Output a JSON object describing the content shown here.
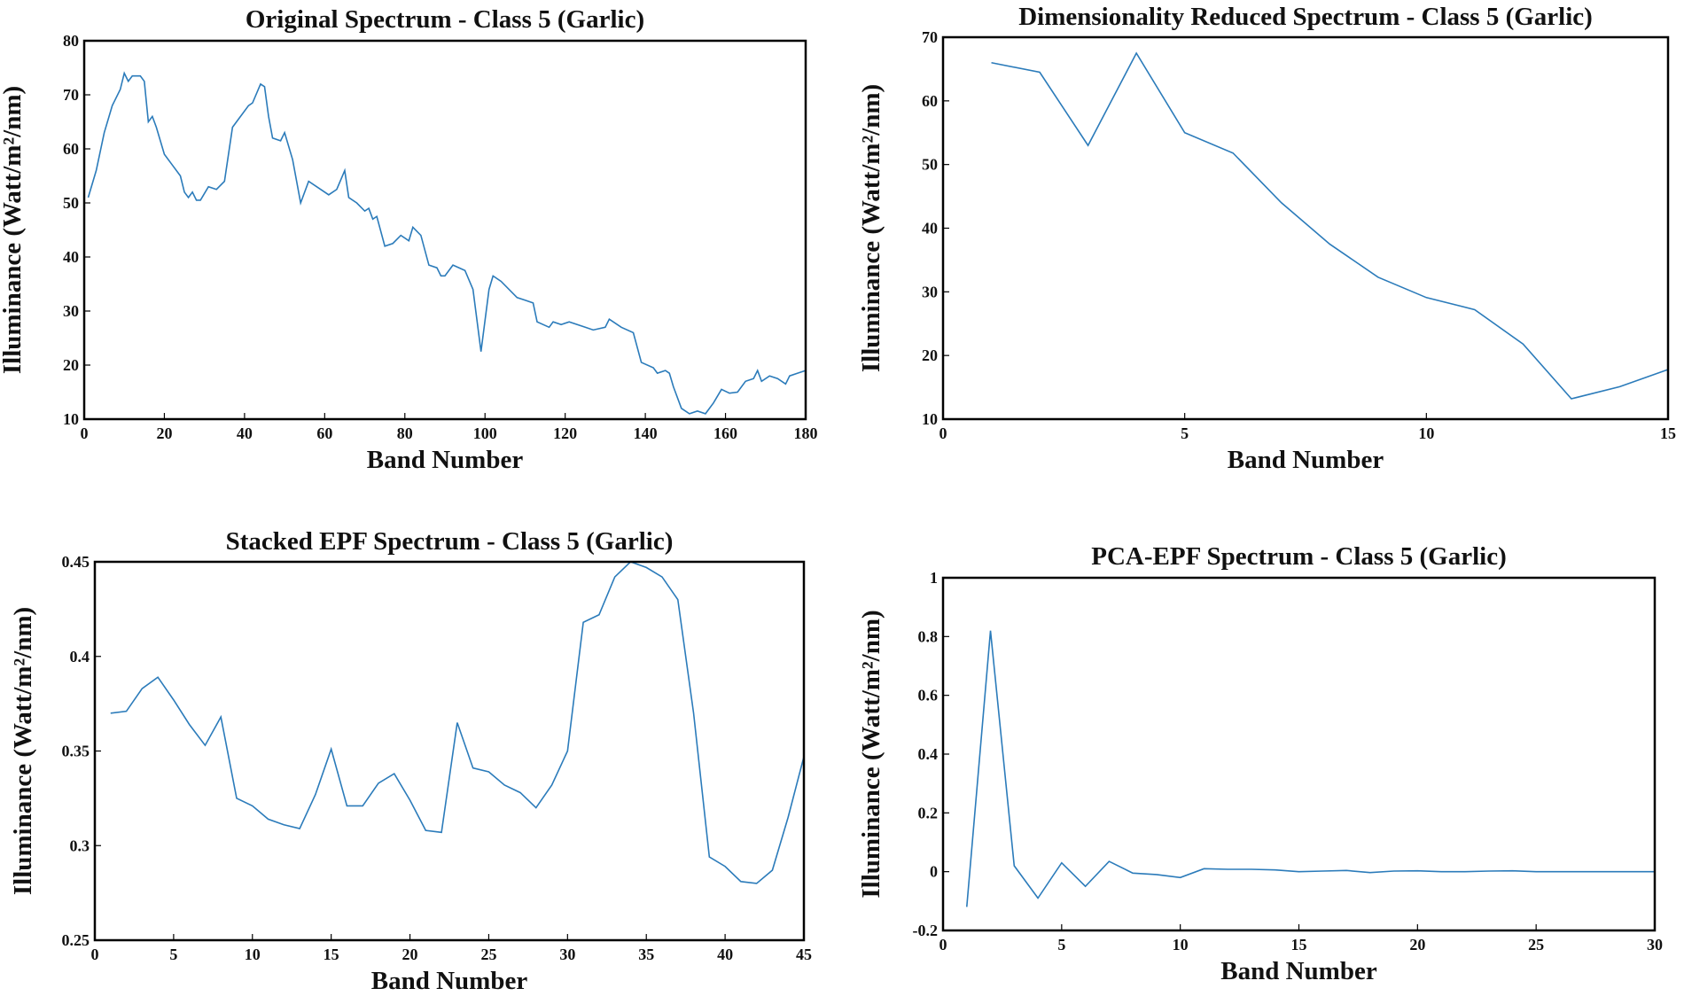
{
  "chart_data": [
    {
      "type": "line",
      "title": "Original Spectrum - Class 5 (Garlic)",
      "xlabel": "Band Number",
      "ylabel": "Illuminance (Watt/m²/nm)",
      "color": "#2b7bba",
      "x": [
        1,
        3,
        5,
        7,
        9,
        10,
        11,
        12,
        14,
        15,
        16,
        17,
        18,
        20,
        22,
        24,
        25,
        26,
        27,
        28,
        29,
        31,
        33,
        35,
        37,
        39,
        41,
        42,
        44,
        45,
        46,
        47,
        49,
        50,
        52,
        54,
        56,
        58,
        61,
        63,
        65,
        66,
        68,
        70,
        71,
        72,
        73,
        75,
        77,
        79,
        81,
        82,
        84,
        86,
        88,
        89,
        90,
        92,
        95,
        97,
        99,
        101,
        102,
        104,
        108,
        110,
        112,
        113,
        116,
        117,
        119,
        121,
        125,
        127,
        130,
        131,
        134,
        137,
        139,
        142,
        143,
        145,
        146,
        147,
        149,
        151,
        153,
        155,
        157,
        159,
        161,
        163,
        165,
        167,
        168,
        169,
        171,
        173,
        175,
        176,
        178,
        180
      ],
      "values": [
        51,
        56,
        63,
        68,
        71,
        74,
        72.5,
        73.5,
        73.5,
        72.5,
        65,
        66,
        64,
        59,
        57,
        55,
        52,
        51,
        52,
        50.5,
        50.5,
        53,
        52.5,
        54,
        64,
        66,
        68,
        68.5,
        72,
        71.5,
        66,
        62,
        61.5,
        63,
        58,
        50,
        54,
        53,
        51.5,
        52.5,
        56,
        51,
        50,
        48.5,
        49,
        47,
        47.5,
        42,
        42.5,
        44,
        43,
        45.5,
        44,
        38.5,
        38,
        36.5,
        36.5,
        38.5,
        37.5,
        34,
        22.5,
        34,
        36.5,
        35.5,
        32.5,
        32,
        31.5,
        28,
        27,
        28,
        27.5,
        28,
        27,
        26.5,
        27,
        28.5,
        27,
        26,
        20.5,
        19.5,
        18.5,
        19,
        18.5,
        16,
        12,
        11,
        11.5,
        11,
        13,
        15.5,
        14.8,
        15,
        17,
        17.5,
        19,
        17,
        18,
        17.5,
        16.5,
        18,
        18.5,
        19
      ],
      "xlim": [
        0,
        180
      ],
      "xticks": [
        0,
        20,
        40,
        60,
        80,
        100,
        120,
        140,
        160,
        180
      ],
      "ylim": [
        10,
        80
      ],
      "yticks": [
        10,
        20,
        30,
        40,
        50,
        60,
        70,
        80
      ]
    },
    {
      "type": "line",
      "title": "Dimensionality Reduced Spectrum - Class 5 (Garlic)",
      "xlabel": "Band Number",
      "ylabel": "Illuminance (Watt/m²/nm)",
      "color": "#2b7bba",
      "x": [
        1,
        2,
        3,
        4,
        5,
        6,
        7,
        8,
        9,
        10,
        11,
        12,
        13,
        14,
        15
      ],
      "values": [
        66,
        64.5,
        53,
        67.5,
        55,
        51.8,
        44,
        37.5,
        32.3,
        29.1,
        27.2,
        21.8,
        13.2,
        15.1,
        17.8
      ],
      "xlim": [
        0,
        15
      ],
      "xticks": [
        0,
        5,
        10,
        15
      ],
      "ylim": [
        10,
        70
      ],
      "yticks": [
        10,
        20,
        30,
        40,
        50,
        60,
        70
      ]
    },
    {
      "type": "line",
      "title": "Stacked EPF Spectrum - Class 5 (Garlic)",
      "xlabel": "Band Number",
      "ylabel": "Illuminance (Watt/m²/nm)",
      "color": "#2b7bba",
      "x": [
        1,
        2,
        3,
        4,
        5,
        6,
        7,
        8,
        9,
        10,
        11,
        12,
        13,
        14,
        15,
        16,
        17,
        18,
        19,
        20,
        21,
        22,
        23,
        24,
        25,
        26,
        27,
        28,
        29,
        30,
        31,
        32,
        33,
        34,
        35,
        36,
        37,
        38,
        39,
        40,
        41,
        42,
        43,
        44,
        45
      ],
      "values": [
        0.37,
        0.371,
        0.383,
        0.389,
        0.377,
        0.364,
        0.353,
        0.368,
        0.325,
        0.321,
        0.314,
        0.311,
        0.309,
        0.327,
        0.351,
        0.321,
        0.321,
        0.333,
        0.338,
        0.324,
        0.308,
        0.307,
        0.365,
        0.341,
        0.339,
        0.332,
        0.328,
        0.32,
        0.332,
        0.35,
        0.418,
        0.422,
        0.442,
        0.45,
        0.447,
        0.442,
        0.43,
        0.37,
        0.294,
        0.289,
        0.281,
        0.28,
        0.287,
        0.315,
        0.347
      ],
      "xlim": [
        0,
        45
      ],
      "xticks": [
        0,
        5,
        10,
        15,
        20,
        25,
        30,
        35,
        40,
        45
      ],
      "ylim": [
        0.25,
        0.45
      ],
      "yticks": [
        0.25,
        0.3,
        0.35,
        0.4,
        0.45
      ]
    },
    {
      "type": "line",
      "title": "PCA-EPF Spectrum - Class 5 (Garlic)",
      "xlabel": "Band Number",
      "ylabel": "Illuminance (Watt/m²/nm)",
      "color": "#2b7bba",
      "x": [
        1,
        2,
        3,
        4,
        5,
        6,
        7,
        8,
        9,
        10,
        11,
        12,
        13,
        14,
        15,
        16,
        17,
        18,
        19,
        20,
        21,
        22,
        23,
        24,
        25,
        26,
        27,
        28,
        29,
        30
      ],
      "values": [
        -0.12,
        0.82,
        0.02,
        -0.09,
        0.03,
        -0.05,
        0.035,
        -0.005,
        -0.01,
        -0.02,
        0.01,
        0.008,
        0.008,
        0.006,
        0,
        0.002,
        0.004,
        -0.003,
        0.002,
        0.003,
        0,
        0,
        0.002,
        0.003,
        0,
        0,
        0,
        0,
        0,
        0
      ],
      "xlim": [
        0,
        30
      ],
      "xticks": [
        0,
        5,
        10,
        15,
        20,
        25,
        30
      ],
      "ylim": [
        -0.2,
        1
      ],
      "yticks": [
        -0.2,
        0,
        0.2,
        0.4,
        0.6,
        0.8,
        1
      ]
    }
  ]
}
